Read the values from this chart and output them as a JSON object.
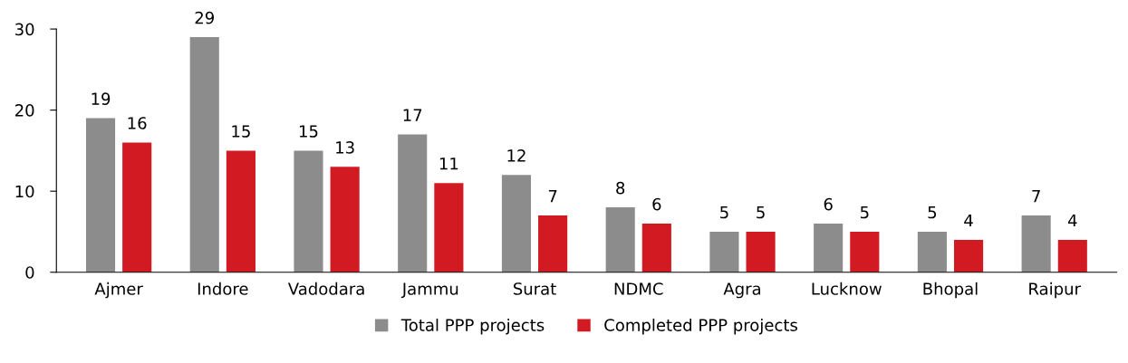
{
  "chart_data": {
    "type": "bar",
    "categories": [
      "Ajmer",
      "Indore",
      "Vadodara",
      "Jammu",
      "Surat",
      "NDMC",
      "Agra",
      "Lucknow",
      "Bhopal",
      "Raipur"
    ],
    "series": [
      {
        "name": "Total PPP projects",
        "color": "#8c8c8c",
        "values": [
          19,
          29,
          15,
          17,
          12,
          8,
          5,
          6,
          5,
          7
        ]
      },
      {
        "name": "Completed PPP projects",
        "color": "#d11a22",
        "values": [
          16,
          15,
          13,
          11,
          7,
          6,
          5,
          5,
          4,
          4
        ]
      }
    ],
    "ylim": [
      0,
      30
    ],
    "yticks": [
      0,
      10,
      20,
      30
    ],
    "grid": false,
    "legend": "bottom",
    "data_labels": true
  }
}
